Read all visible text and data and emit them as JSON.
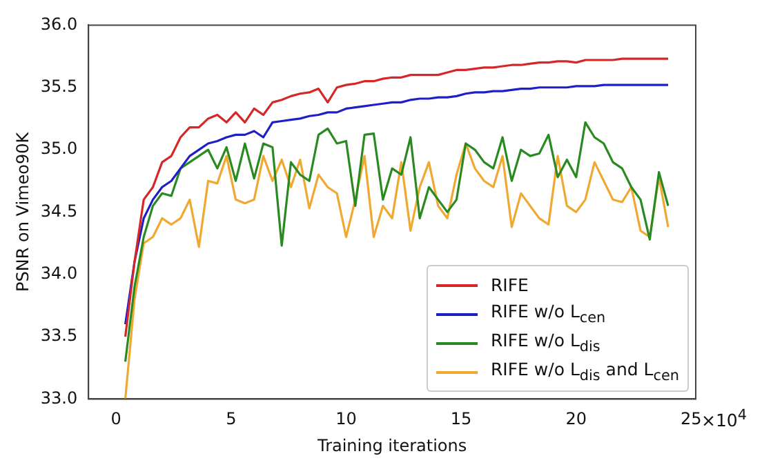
{
  "chart_data": {
    "type": "line",
    "xlabel": "Training iterations",
    "ylabel": "PSNR on Vimeo90K",
    "annotations": [
      "×10$^{4}$"
    ],
    "x": [
      0.4,
      0.8,
      1.2,
      1.6,
      2.0,
      2.4,
      2.8,
      3.2,
      3.6,
      4.0,
      4.4,
      4.8,
      5.2,
      5.6,
      6.0,
      6.4,
      6.8,
      7.2,
      7.6,
      8.0,
      8.4,
      8.8,
      9.2,
      9.6,
      10.0,
      10.4,
      10.8,
      11.2,
      11.6,
      12.0,
      12.4,
      12.8,
      13.2,
      13.6,
      14.0,
      14.4,
      14.8,
      15.2,
      15.6,
      16.0,
      16.4,
      16.8,
      17.2,
      17.6,
      18.0,
      18.4,
      18.8,
      19.2,
      19.6,
      20.0,
      20.4,
      20.8,
      21.2,
      21.6,
      22.0,
      22.4,
      22.8,
      23.2,
      23.6,
      24.0
    ],
    "series": [
      {
        "name": "RIFE",
        "color": "#d62728",
        "values": [
          33.5,
          34.1,
          34.6,
          34.7,
          34.9,
          34.95,
          35.1,
          35.18,
          35.18,
          35.25,
          35.28,
          35.22,
          35.3,
          35.22,
          35.33,
          35.28,
          35.38,
          35.4,
          35.43,
          35.45,
          35.46,
          35.49,
          35.38,
          35.5,
          35.52,
          35.53,
          35.55,
          35.55,
          35.57,
          35.58,
          35.58,
          35.6,
          35.6,
          35.6,
          35.6,
          35.62,
          35.64,
          35.64,
          35.65,
          35.66,
          35.66,
          35.67,
          35.68,
          35.68,
          35.69,
          35.7,
          35.7,
          35.71,
          35.71,
          35.7,
          35.72,
          35.72,
          35.72,
          35.72,
          35.73,
          35.73,
          35.73,
          35.73,
          35.73,
          35.73
        ]
      },
      {
        "name": "RIFE w/o L$_{cen}$",
        "color": "#1f1fc8",
        "values": [
          33.6,
          34.1,
          34.45,
          34.6,
          34.7,
          34.75,
          34.85,
          34.95,
          35.0,
          35.05,
          35.07,
          35.1,
          35.12,
          35.12,
          35.15,
          35.1,
          35.22,
          35.23,
          35.24,
          35.25,
          35.27,
          35.28,
          35.3,
          35.3,
          35.33,
          35.34,
          35.35,
          35.36,
          35.37,
          35.38,
          35.38,
          35.4,
          35.41,
          35.41,
          35.42,
          35.42,
          35.43,
          35.45,
          35.46,
          35.46,
          35.47,
          35.47,
          35.48,
          35.49,
          35.49,
          35.5,
          35.5,
          35.5,
          35.5,
          35.51,
          35.51,
          35.51,
          35.52,
          35.52,
          35.52,
          35.52,
          35.52,
          35.52,
          35.52,
          35.52
        ]
      },
      {
        "name": "RIFE w/o L$_{dis}$",
        "color": "#2a8a22",
        "values": [
          33.3,
          33.9,
          34.3,
          34.55,
          34.65,
          34.63,
          34.85,
          34.9,
          34.95,
          35.0,
          34.85,
          35.02,
          34.75,
          35.05,
          34.77,
          35.05,
          35.02,
          34.23,
          34.9,
          34.8,
          34.75,
          35.12,
          35.17,
          35.05,
          35.07,
          34.55,
          35.12,
          35.13,
          34.6,
          34.85,
          34.8,
          35.1,
          34.45,
          34.7,
          34.6,
          34.5,
          34.6,
          35.05,
          35.0,
          34.9,
          34.85,
          35.1,
          34.75,
          35.0,
          34.95,
          34.97,
          35.12,
          34.78,
          34.92,
          34.78,
          35.22,
          35.1,
          35.05,
          34.9,
          34.85,
          34.7,
          34.6,
          34.28,
          34.82,
          34.55
        ]
      },
      {
        "name": "RIFE w/o L$_{dis}$ and L$_{cen}$",
        "color": "#f0a830",
        "values": [
          33.0,
          33.8,
          34.25,
          34.3,
          34.45,
          34.4,
          34.45,
          34.6,
          34.22,
          34.75,
          34.73,
          34.95,
          34.6,
          34.57,
          34.6,
          34.95,
          34.75,
          34.92,
          34.7,
          34.92,
          34.53,
          34.8,
          34.7,
          34.65,
          34.3,
          34.6,
          34.95,
          34.3,
          34.55,
          34.45,
          34.9,
          34.35,
          34.7,
          34.9,
          34.55,
          34.45,
          34.8,
          35.05,
          34.85,
          34.75,
          34.7,
          34.95,
          34.38,
          34.65,
          34.55,
          34.45,
          34.4,
          34.95,
          34.55,
          34.5,
          34.6,
          34.9,
          34.75,
          34.6,
          34.58,
          34.7,
          34.35,
          34.3,
          34.78,
          34.38
        ]
      }
    ],
    "xlim": [
      -1.2,
      25.2
    ],
    "xticks": [
      0,
      5,
      10,
      15,
      20,
      25
    ],
    "ylim": [
      33,
      36
    ],
    "yticks": [
      {
        "value": 33,
        "label": "33.0"
      },
      {
        "value": 33.5,
        "label": "33.5"
      },
      {
        "value": 34,
        "label": "34.0"
      },
      {
        "value": 34.5,
        "label": "34.5"
      },
      {
        "value": 35,
        "label": "35.0"
      },
      {
        "value": 35.5,
        "label": "35.5"
      },
      {
        "value": 36,
        "label": "36.0"
      }
    ],
    "grid": false,
    "legend": "bottom right",
    "marker": "none",
    "line_style": "solid"
  }
}
